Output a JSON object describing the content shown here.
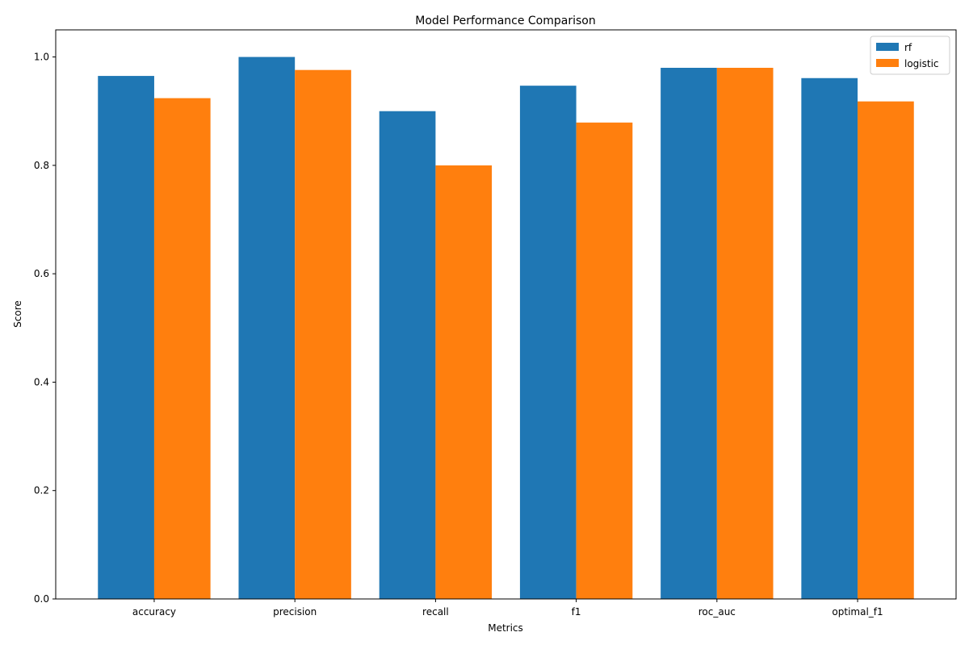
{
  "chart_data": {
    "type": "bar",
    "title": "Model Performance Comparison",
    "xlabel": "Metrics",
    "ylabel": "Score",
    "categories": [
      "accuracy",
      "precision",
      "recall",
      "f1",
      "roc_auc",
      "optimal_f1"
    ],
    "series": [
      {
        "name": "rf",
        "color": "#1f77b4",
        "values": [
          0.965,
          1.0,
          0.9,
          0.947,
          0.98,
          0.961
        ]
      },
      {
        "name": "logistic",
        "color": "#ff7f0e",
        "values": [
          0.924,
          0.976,
          0.8,
          0.879,
          0.98,
          0.918
        ]
      }
    ],
    "ylim": [
      0,
      1.05
    ],
    "yticks": [
      0.0,
      0.2,
      0.4,
      0.6,
      0.8,
      1.0
    ],
    "ytick_labels": [
      "0.0",
      "0.2",
      "0.4",
      "0.6",
      "0.8",
      "1.0"
    ],
    "grid": false,
    "legend_position": "top-right"
  }
}
